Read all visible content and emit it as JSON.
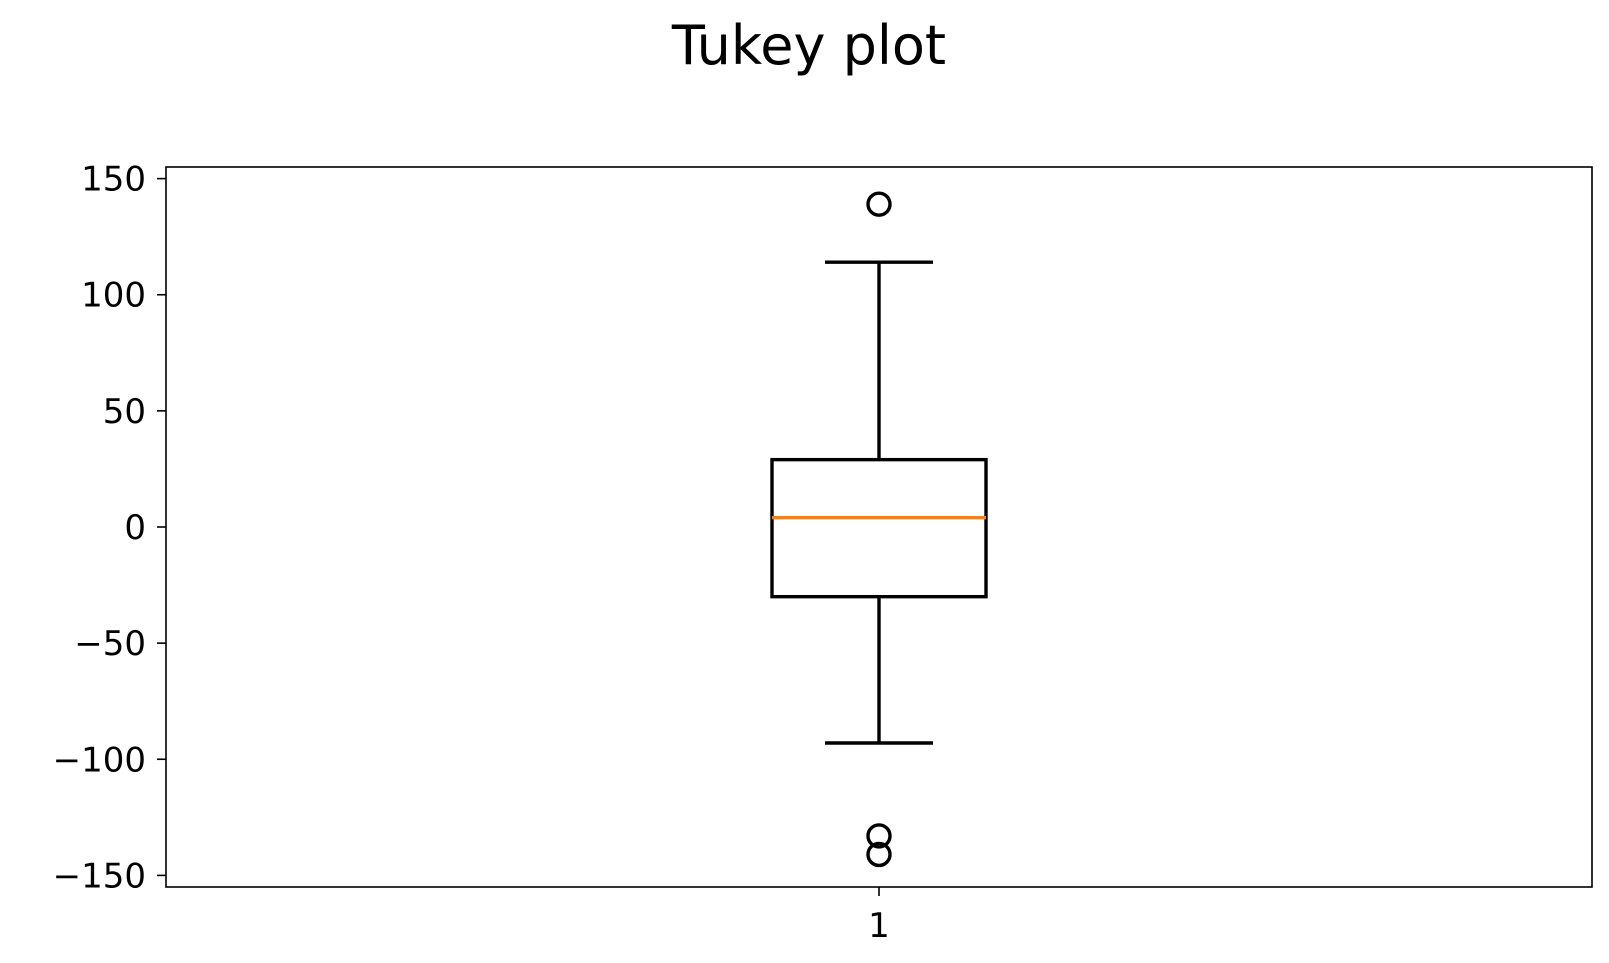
{
  "chart_data": {
    "type": "box",
    "title": "Tukey plot",
    "xlabel": "",
    "ylabel": "",
    "categories": [
      "1"
    ],
    "ylim": [
      -155,
      155
    ],
    "y_ticks": [
      150,
      100,
      50,
      0,
      -50,
      -100,
      -150
    ],
    "y_tick_labels": [
      "150",
      "100",
      "50",
      "0",
      "−50",
      "−100",
      "−150"
    ],
    "x_tick_labels": [
      "1"
    ],
    "grid": false,
    "boxes": [
      {
        "category": "1",
        "whisker_low": -93,
        "q1": -30,
        "median": 4,
        "q3": 29,
        "whisker_high": 114,
        "outliers": [
          139,
          -133,
          -141
        ]
      }
    ],
    "colors": {
      "box": "#000000",
      "median": "#ff7f0e",
      "axes": "#000000"
    }
  }
}
